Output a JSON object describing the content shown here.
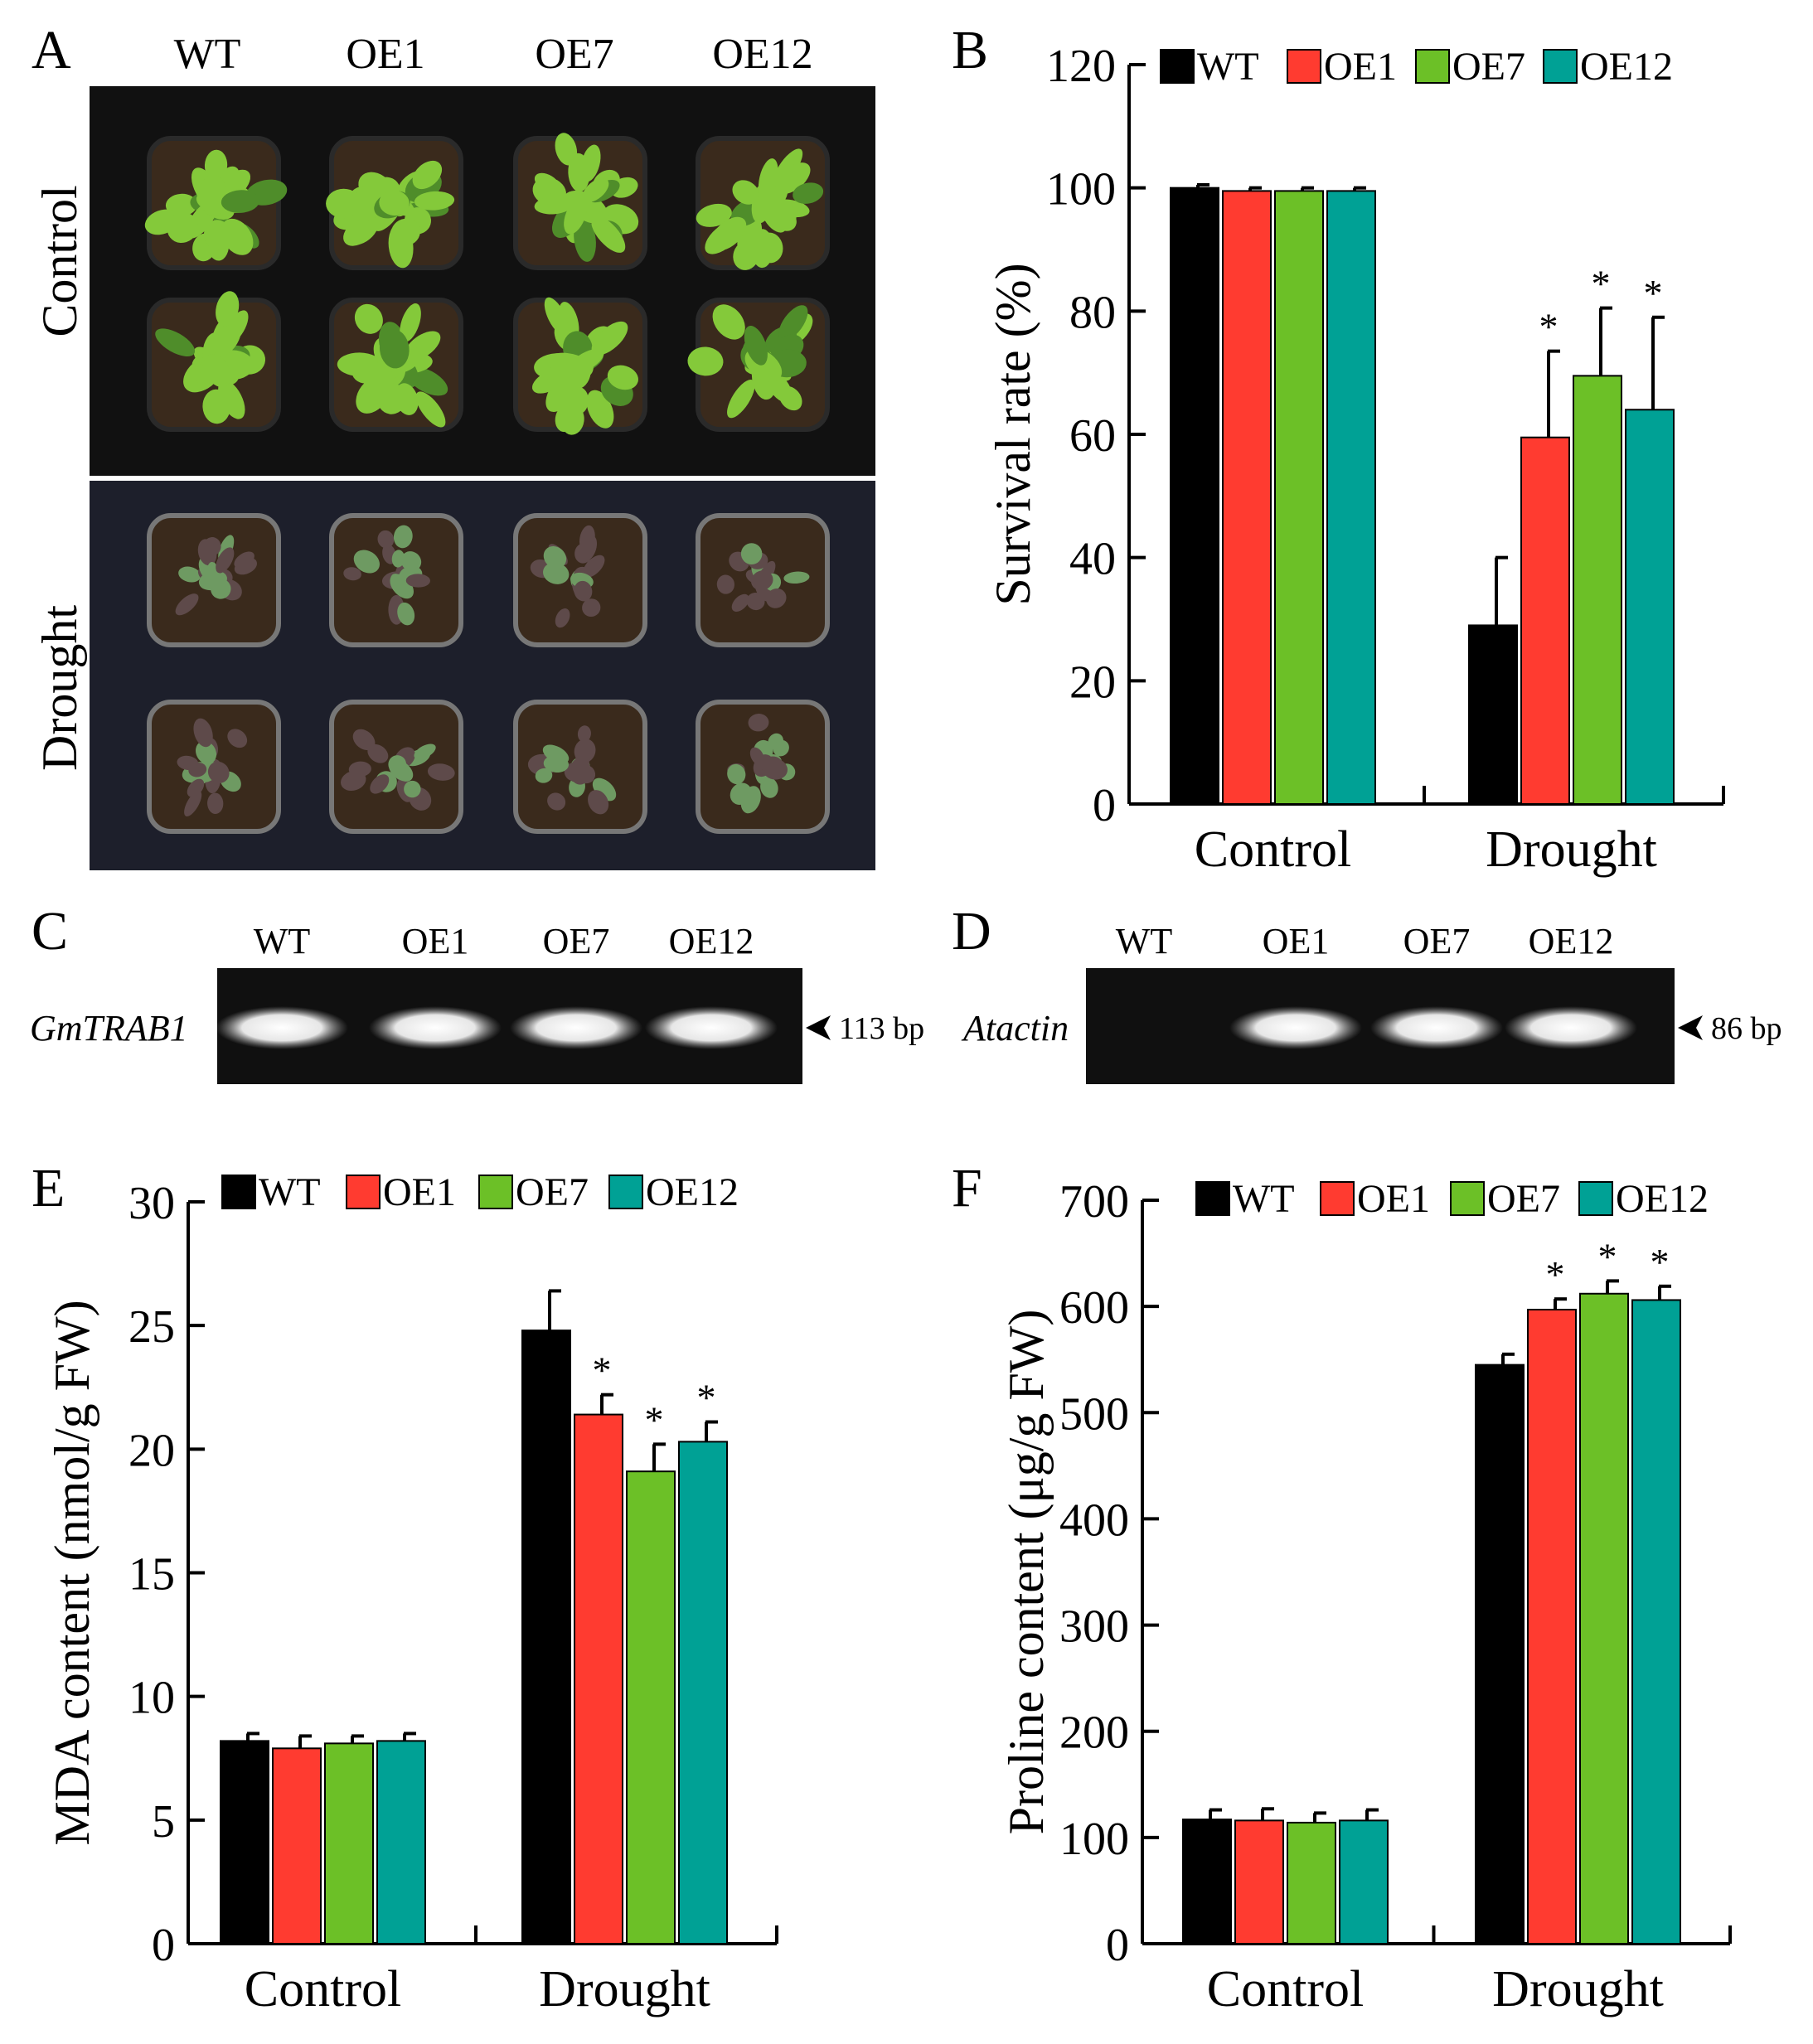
{
  "panels": {
    "A": {
      "letter": "A",
      "columns": [
        "WT",
        "OE1",
        "OE7",
        "OE12"
      ],
      "rows": [
        "Control",
        "Drought"
      ],
      "colors": {
        "bg_control": "#111111",
        "bg_drought": "#1d1f2b",
        "leaf": "#84c93a",
        "leaf_dark": "#4f8d2a",
        "soil": "#3a2a1c",
        "wilted": "#5e4a4a",
        "wilted_green": "#6e9a62"
      }
    },
    "C": {
      "letter": "C",
      "gene": "GmTRAB1",
      "lanes": [
        "WT",
        "OE1",
        "OE7",
        "OE12"
      ],
      "band_present": [
        true,
        true,
        true,
        true
      ],
      "size_label": "113 bp"
    },
    "D": {
      "letter": "D",
      "gene": "Atactin",
      "lanes": [
        "WT",
        "OE1",
        "OE7",
        "OE12"
      ],
      "band_present": [
        false,
        true,
        true,
        true
      ],
      "size_label": "86 bp"
    }
  },
  "chart_data": [
    {
      "panel": "B",
      "type": "bar",
      "categories": [
        "Control",
        "Drought"
      ],
      "series": [
        {
          "name": "WT",
          "color": "#000000",
          "values": [
            100,
            29
          ],
          "errors": [
            0.5,
            11
          ],
          "sig": [
            "",
            ""
          ]
        },
        {
          "name": "OE1",
          "color": "#ff3b30",
          "values": [
            99.5,
            59.5
          ],
          "errors": [
            0.5,
            14
          ],
          "sig": [
            "",
            "*"
          ]
        },
        {
          "name": "OE7",
          "color": "#6cc027",
          "values": [
            99.5,
            69.5
          ],
          "errors": [
            0.5,
            11
          ],
          "sig": [
            "",
            "*"
          ]
        },
        {
          "name": "OE12",
          "color": "#00a195",
          "values": [
            99.5,
            64
          ],
          "errors": [
            0.5,
            15
          ],
          "sig": [
            "",
            "*"
          ]
        }
      ],
      "ylabel": "Survival rate (%)",
      "xlabel": "",
      "ylim": [
        0,
        120
      ],
      "yticks": [
        0,
        20,
        40,
        60,
        80,
        100,
        120
      ],
      "legend": "top"
    },
    {
      "panel": "E",
      "type": "bar",
      "categories": [
        "Control",
        "Drought"
      ],
      "series": [
        {
          "name": "WT",
          "color": "#000000",
          "values": [
            8.2,
            24.8
          ],
          "errors": [
            0.3,
            1.6
          ],
          "sig": [
            "",
            ""
          ]
        },
        {
          "name": "OE1",
          "color": "#ff3b30",
          "values": [
            7.9,
            21.4
          ],
          "errors": [
            0.5,
            0.8
          ],
          "sig": [
            "",
            "*"
          ]
        },
        {
          "name": "OE7",
          "color": "#6cc027",
          "values": [
            8.1,
            19.1
          ],
          "errors": [
            0.3,
            1.1
          ],
          "sig": [
            "",
            "*"
          ]
        },
        {
          "name": "OE12",
          "color": "#00a195",
          "values": [
            8.2,
            20.3
          ],
          "errors": [
            0.3,
            0.8
          ],
          "sig": [
            "",
            "*"
          ]
        }
      ],
      "ylabel": "MDA content (nmol/g FW)",
      "xlabel": "",
      "ylim": [
        0,
        30
      ],
      "yticks": [
        0,
        5,
        10,
        15,
        20,
        25,
        30
      ],
      "legend": "top"
    },
    {
      "panel": "F",
      "type": "bar",
      "categories": [
        "Control",
        "Drought"
      ],
      "series": [
        {
          "name": "WT",
          "color": "#000000",
          "values": [
            117,
            545
          ],
          "errors": [
            9,
            10
          ],
          "sig": [
            "",
            ""
          ]
        },
        {
          "name": "OE1",
          "color": "#ff3b30",
          "values": [
            116,
            597
          ],
          "errors": [
            11,
            10
          ],
          "sig": [
            "",
            "*"
          ]
        },
        {
          "name": "OE7",
          "color": "#6cc027",
          "values": [
            114,
            612
          ],
          "errors": [
            9,
            12
          ],
          "sig": [
            "",
            "*"
          ]
        },
        {
          "name": "OE12",
          "color": "#00a195",
          "values": [
            116,
            606
          ],
          "errors": [
            10,
            13
          ],
          "sig": [
            "",
            "*"
          ]
        }
      ],
      "ylabel": "Proline content (μg/g FW)",
      "xlabel": "",
      "ylim": [
        0,
        700
      ],
      "yticks": [
        0,
        100,
        200,
        300,
        400,
        500,
        600,
        700
      ],
      "legend": "top"
    }
  ]
}
